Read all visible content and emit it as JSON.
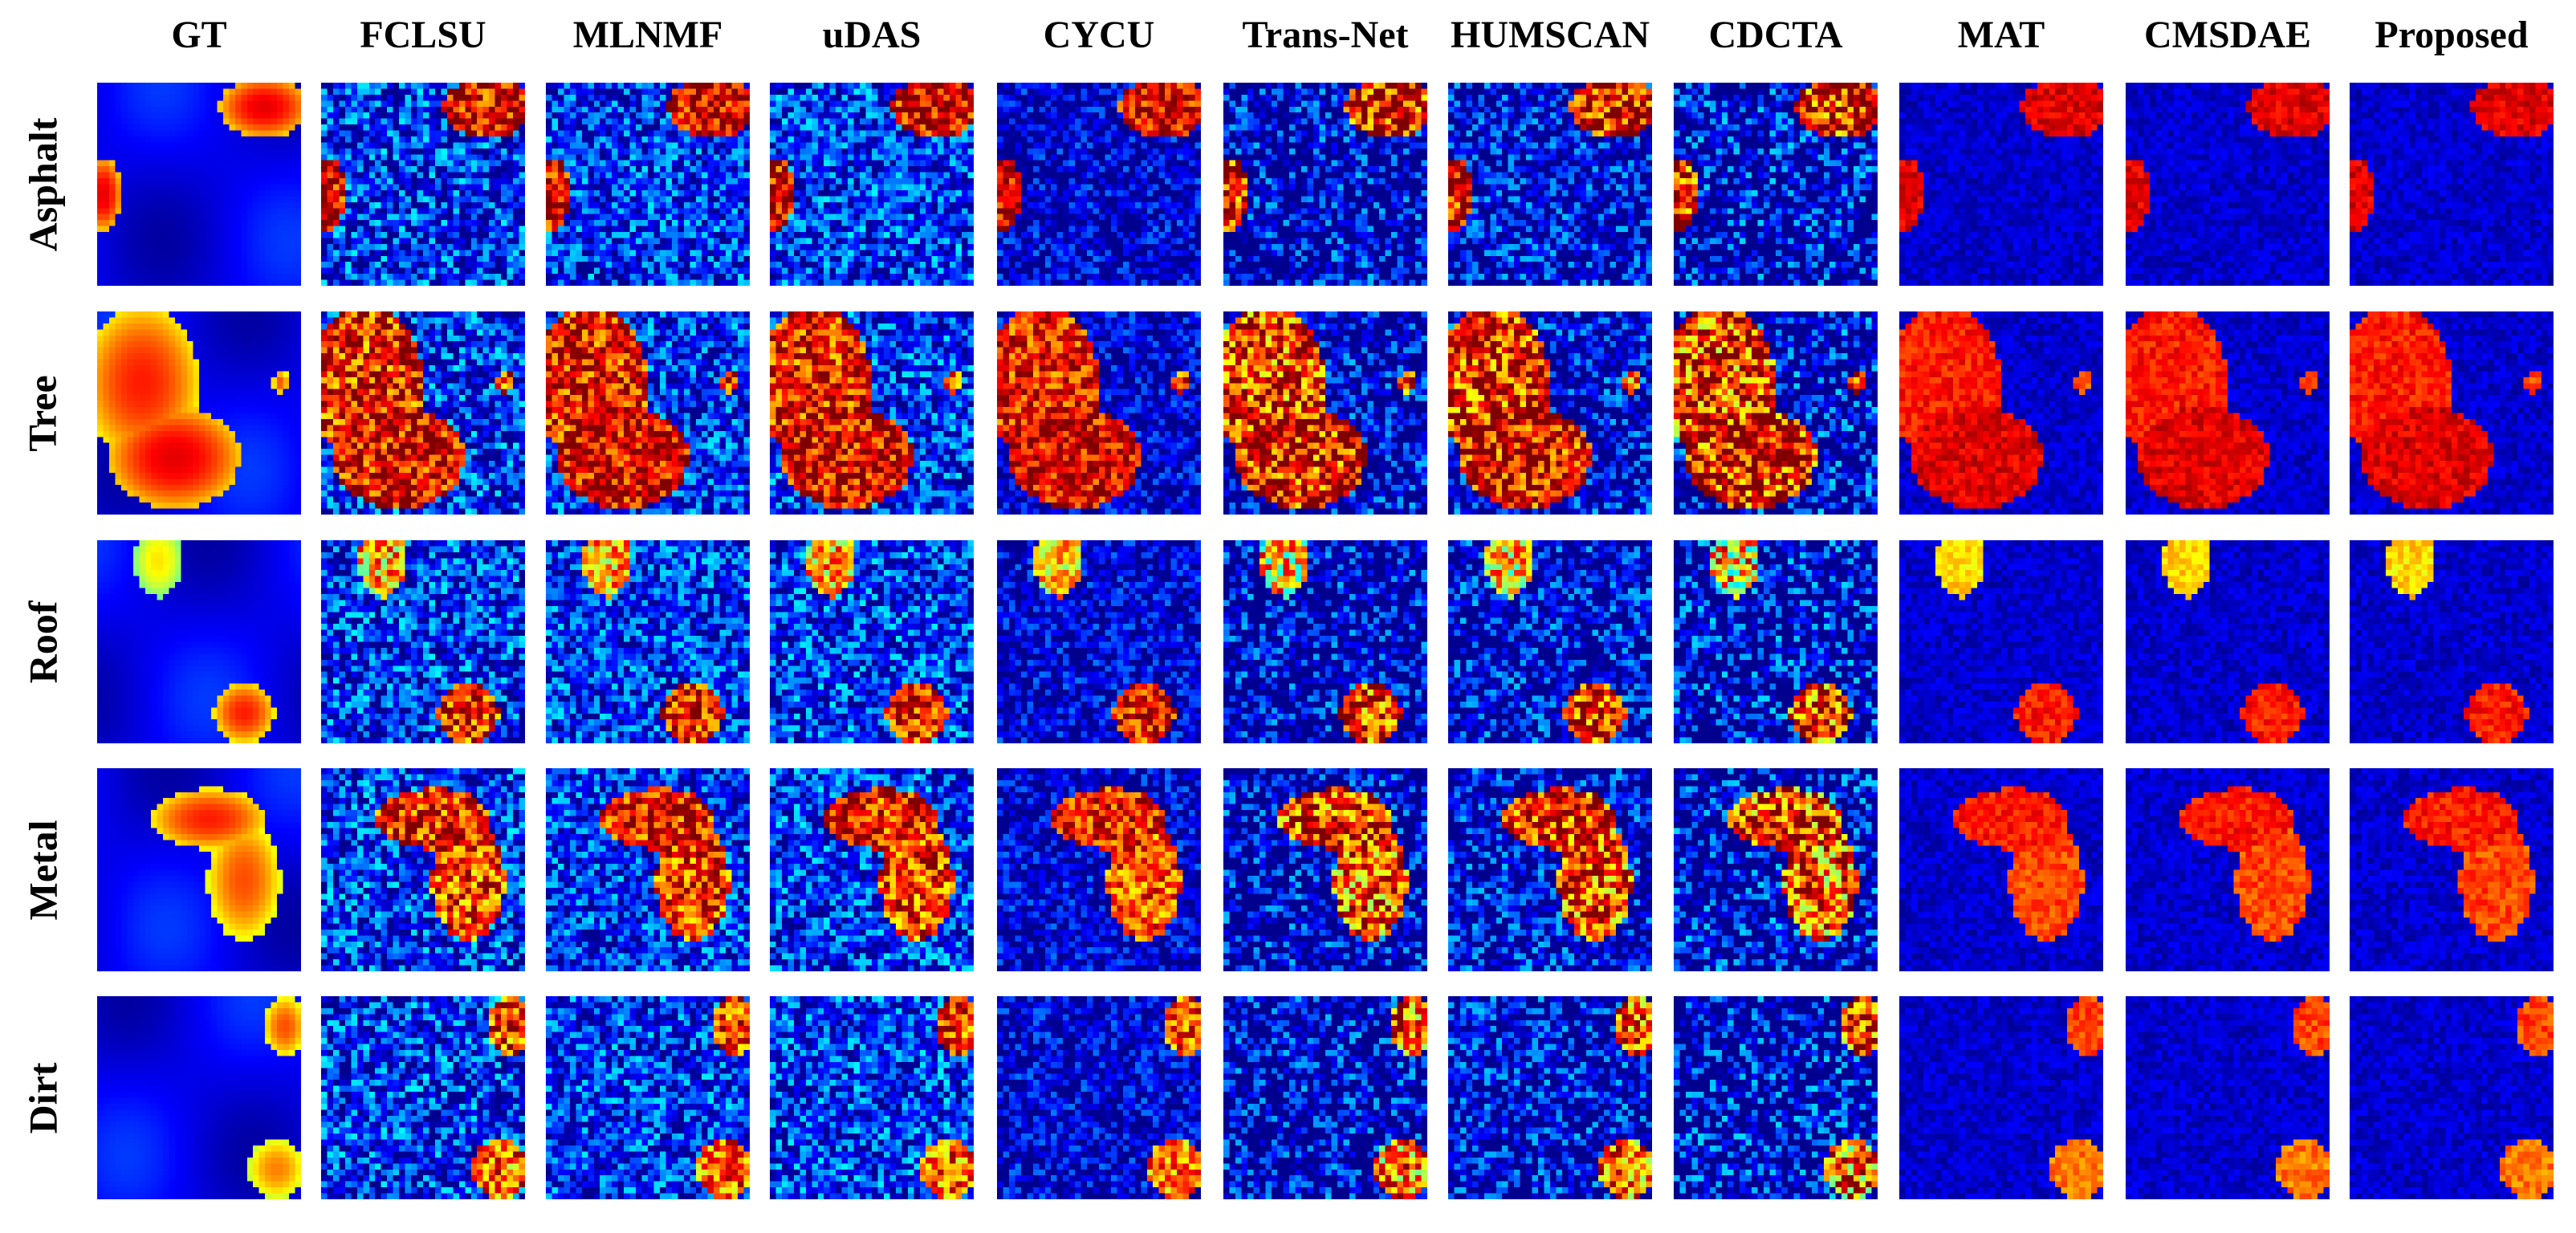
{
  "figure": {
    "methods": [
      "GT",
      "FCLSU",
      "MLNMF",
      "uDAS",
      "CYCU",
      "Trans-Net",
      "HUMSCAN",
      "CDCTA",
      "MAT",
      "CMSDAE",
      "Proposed"
    ],
    "endmembers": [
      "Asphalt",
      "Tree",
      "Roof",
      "Metal",
      "Dirt"
    ],
    "colormap": "jet",
    "colormap_stops": [
      "#00008f",
      "#0000ff",
      "#0080ff",
      "#00ffff",
      "#80ff80",
      "#ffff00",
      "#ff8000",
      "#ff0000",
      "#800000"
    ]
  }
}
